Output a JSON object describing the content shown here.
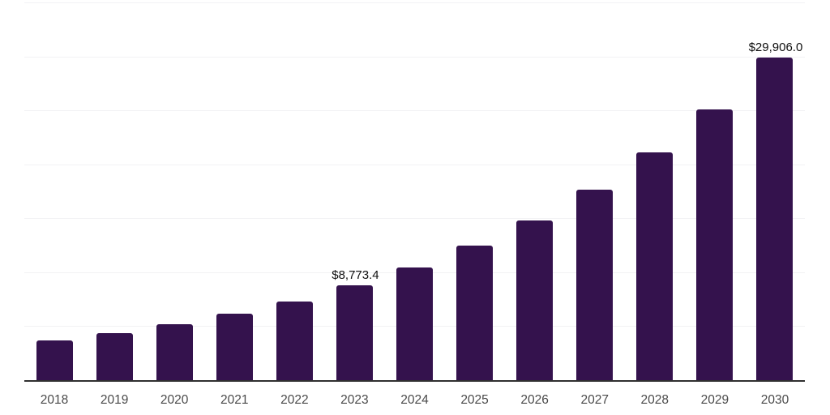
{
  "chart": {
    "colors": {
      "bar": "#34124d",
      "grid": "#f2f2f4",
      "axis": "#303030",
      "tick_label": "#4a4a4a",
      "value_label": "#0f0f0f",
      "background": "#ffffff"
    }
  },
  "chart_data": {
    "type": "bar",
    "title": "",
    "xlabel": "",
    "ylabel": "",
    "categories": [
      "2018",
      "2019",
      "2020",
      "2021",
      "2022",
      "2023",
      "2024",
      "2025",
      "2026",
      "2027",
      "2028",
      "2029",
      "2030"
    ],
    "values": [
      3650,
      4350,
      5150,
      6150,
      7300,
      8773.4,
      10450,
      12440,
      14820,
      17660,
      21070,
      25110,
      29906
    ],
    "point_labels": [
      "",
      "",
      "",
      "",
      "",
      "$8,773.4",
      "",
      "",
      "",
      "",
      "",
      "",
      "$29,906.0"
    ],
    "ylim": [
      0,
      35000
    ],
    "gridline_interval": 5000,
    "grid": true,
    "legend": false,
    "y_axis_labels_visible": false
  }
}
